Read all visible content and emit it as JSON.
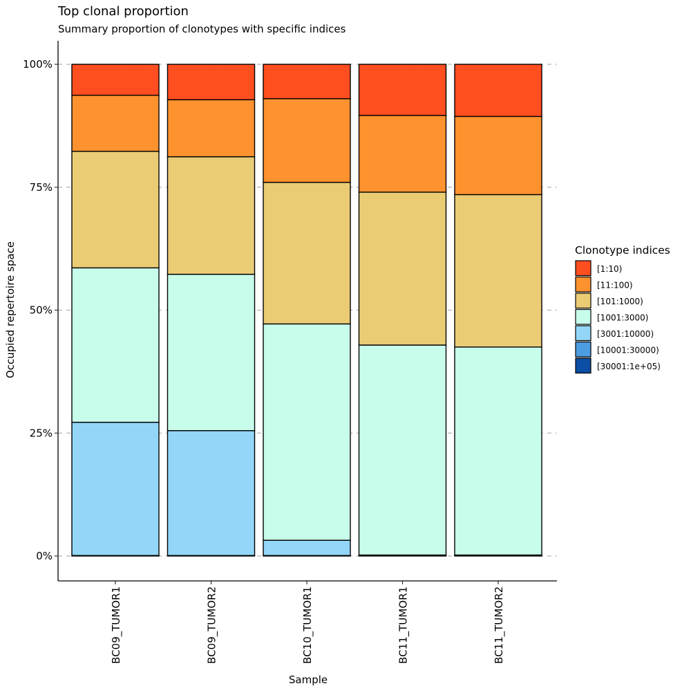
{
  "chart_data": {
    "type": "bar",
    "stacked": true,
    "normalized": true,
    "title": "Top clonal proportion",
    "subtitle": "Summary proportion of clonotypes with specific indices",
    "xlabel": "Sample",
    "ylabel": "Occupied repertoire space",
    "ylim": [
      0,
      1
    ],
    "yticks": [
      0,
      0.25,
      0.5,
      0.75,
      1.0
    ],
    "ytick_labels": [
      "0%",
      "25%",
      "50%",
      "75%",
      "100%"
    ],
    "grid": "horizontal dashed at y ticks",
    "categories": [
      "BC09_TUMOR1",
      "BC09_TUMOR2",
      "BC10_TUMOR1",
      "BC11_TUMOR1",
      "BC11_TUMOR2"
    ],
    "legend": {
      "title": "Clonotype indices",
      "placement": "right"
    },
    "series": [
      {
        "name": "[1:10)",
        "color": "#FF4E20",
        "values": [
          0.063,
          0.072,
          0.07,
          0.104,
          0.106
        ]
      },
      {
        "name": "[11:100)",
        "color": "#FE922E",
        "values": [
          0.114,
          0.116,
          0.17,
          0.156,
          0.159
        ]
      },
      {
        "name": "[101:1000)",
        "color": "#EACC75",
        "values": [
          0.237,
          0.239,
          0.288,
          0.311,
          0.31
        ]
      },
      {
        "name": "[1001:3000)",
        "color": "#C8FDEC",
        "values": [
          0.314,
          0.318,
          0.44,
          0.427,
          0.423
        ]
      },
      {
        "name": "[3001:10000)",
        "color": "#93D6F8",
        "values": [
          0.271,
          0.254,
          0.031,
          0.001,
          0.001
        ]
      },
      {
        "name": "[10001:30000)",
        "color": "#4D9DE2",
        "values": [
          0.001,
          0.001,
          0.001,
          0.001,
          0.001
        ]
      },
      {
        "name": "[30001:1e+05)",
        "color": "#0B4EA3",
        "values": [
          0.0,
          0.0,
          0.0,
          0.0,
          0.0
        ]
      }
    ]
  }
}
